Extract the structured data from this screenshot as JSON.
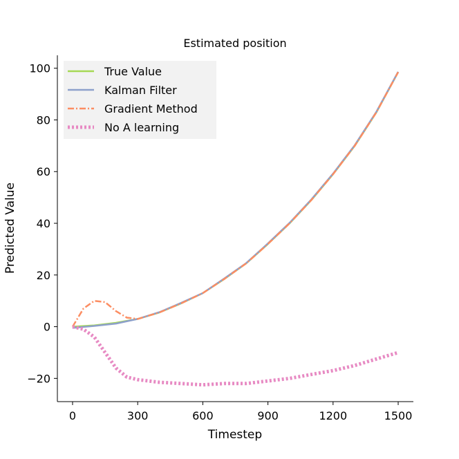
{
  "chart_data": {
    "type": "line",
    "title": "Estimated position",
    "xlabel": "Timestep",
    "ylabel": "Predicted Value",
    "xlim": [
      -70,
      1570
    ],
    "ylim": [
      -29,
      105
    ],
    "xticks": [
      0,
      300,
      600,
      900,
      1200,
      1500
    ],
    "xtick_labels": [
      "0",
      "300",
      "600",
      "900",
      "1200",
      "1500"
    ],
    "yticks": [
      -20,
      0,
      20,
      40,
      60,
      80,
      100
    ],
    "ytick_labels": [
      "−20",
      "0",
      "20",
      "40",
      "60",
      "80",
      "100"
    ],
    "legend_position": "top-left",
    "grid": false,
    "series": [
      {
        "name": "True Value",
        "color": "#a6d854",
        "style": "solid",
        "x": [
          0,
          100,
          200,
          300,
          400,
          500,
          600,
          700,
          800,
          900,
          1000,
          1100,
          1200,
          1300,
          1400,
          1500
        ],
        "y": [
          0,
          0.5,
          1.5,
          3,
          5.5,
          9,
          13,
          18.5,
          24.5,
          32,
          40,
          49,
          59,
          70,
          83,
          98.5
        ]
      },
      {
        "name": "Kalman Filter",
        "color": "#8da0cb",
        "style": "solid",
        "x": [
          0,
          100,
          200,
          300,
          400,
          500,
          600,
          700,
          800,
          900,
          1000,
          1100,
          1200,
          1300,
          1400,
          1500
        ],
        "y": [
          -0.5,
          0.3,
          1.2,
          3,
          5.6,
          9.2,
          13,
          18.7,
          24.6,
          32.2,
          40.2,
          49.2,
          59.2,
          70.2,
          83.2,
          98.6
        ]
      },
      {
        "name": "Gradient Method",
        "color": "#fc8d62",
        "style": "dashdot",
        "x": [
          0,
          50,
          100,
          150,
          200,
          250,
          300,
          400,
          500,
          600,
          700,
          800,
          900,
          1000,
          1100,
          1200,
          1300,
          1400,
          1500
        ],
        "y": [
          0,
          7,
          10,
          9.5,
          6,
          3.5,
          3,
          5.5,
          9,
          13,
          18.5,
          24.5,
          32,
          40,
          49,
          59,
          70,
          83,
          98.5
        ]
      },
      {
        "name": "No A learning",
        "color": "#e78ac3",
        "style": "dotted",
        "x": [
          0,
          50,
          100,
          150,
          200,
          250,
          300,
          400,
          500,
          600,
          700,
          800,
          900,
          1000,
          1100,
          1200,
          1300,
          1400,
          1500
        ],
        "y": [
          0,
          -1,
          -4,
          -10,
          -16,
          -19.5,
          -20.5,
          -21.5,
          -22,
          -22.5,
          -22,
          -22,
          -21,
          -20,
          -18.5,
          -17,
          -15,
          -12.5,
          -10
        ]
      }
    ]
  }
}
